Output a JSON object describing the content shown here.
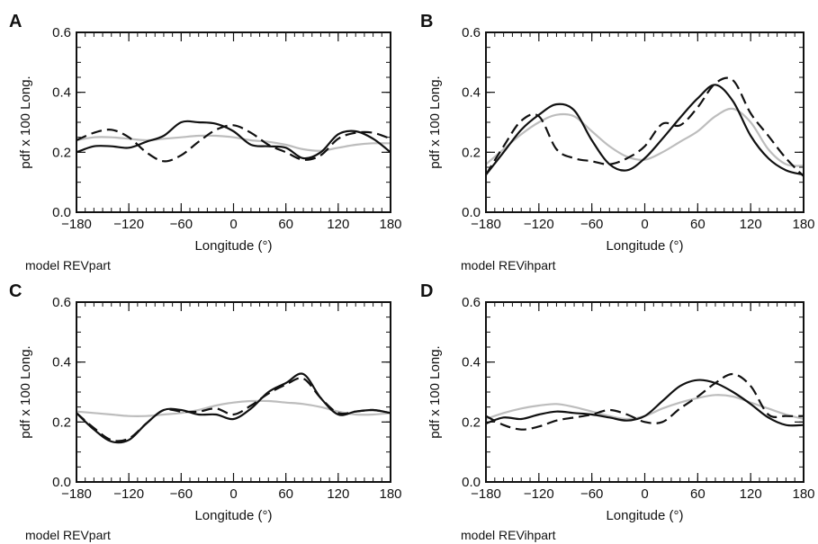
{
  "chart_data": [
    {
      "panel": "A",
      "type": "line",
      "xlabel": "Longitude (°)",
      "ylabel": "pdf x 100 Long.",
      "caption": "model REVpart",
      "xlim": [
        -180,
        180
      ],
      "ylim": [
        0,
        0.6
      ],
      "xticks": [
        -180,
        -120,
        -60,
        0,
        60,
        120,
        180
      ],
      "yticks": [
        0.0,
        0.2,
        0.4,
        0.6
      ],
      "grid": false,
      "series": [
        {
          "style": "gray",
          "color": "#bdbdbd",
          "x": [
            -180,
            -160,
            -140,
            -120,
            -100,
            -80,
            -60,
            -40,
            -20,
            0,
            20,
            40,
            60,
            80,
            100,
            120,
            140,
            160,
            180
          ],
          "y": [
            0.24,
            0.25,
            0.25,
            0.245,
            0.24,
            0.245,
            0.25,
            0.255,
            0.255,
            0.25,
            0.24,
            0.235,
            0.225,
            0.21,
            0.205,
            0.215,
            0.225,
            0.23,
            0.23
          ]
        },
        {
          "style": "dashed",
          "color": "#111111",
          "x": [
            -180,
            -160,
            -140,
            -120,
            -100,
            -80,
            -60,
            -40,
            -20,
            0,
            20,
            40,
            60,
            80,
            100,
            120,
            140,
            160,
            180
          ],
          "y": [
            0.24,
            0.265,
            0.275,
            0.25,
            0.2,
            0.17,
            0.19,
            0.235,
            0.275,
            0.29,
            0.265,
            0.225,
            0.2,
            0.175,
            0.19,
            0.245,
            0.265,
            0.265,
            0.245
          ]
        },
        {
          "style": "solid",
          "color": "#111111",
          "x": [
            -180,
            -160,
            -140,
            -120,
            -100,
            -80,
            -60,
            -40,
            -20,
            0,
            20,
            40,
            60,
            80,
            100,
            120,
            140,
            160,
            180
          ],
          "y": [
            0.2,
            0.22,
            0.22,
            0.215,
            0.235,
            0.255,
            0.3,
            0.3,
            0.295,
            0.27,
            0.225,
            0.22,
            0.215,
            0.18,
            0.2,
            0.26,
            0.27,
            0.245,
            0.2
          ]
        }
      ]
    },
    {
      "panel": "B",
      "type": "line",
      "xlabel": "Longitude (°)",
      "ylabel": "pdf x 100 Long.",
      "caption": "model REVihpart",
      "xlim": [
        -180,
        180
      ],
      "ylim": [
        0,
        0.6
      ],
      "xticks": [
        -180,
        -120,
        -60,
        0,
        60,
        120,
        180
      ],
      "yticks": [
        0.0,
        0.2,
        0.4,
        0.6
      ],
      "grid": false,
      "series": [
        {
          "style": "gray",
          "color": "#bdbdbd",
          "x": [
            -180,
            -160,
            -140,
            -120,
            -100,
            -80,
            -60,
            -40,
            -20,
            0,
            20,
            40,
            60,
            80,
            100,
            120,
            140,
            160,
            180
          ],
          "y": [
            0.16,
            0.21,
            0.26,
            0.3,
            0.325,
            0.32,
            0.27,
            0.22,
            0.185,
            0.175,
            0.2,
            0.235,
            0.27,
            0.32,
            0.345,
            0.3,
            0.21,
            0.16,
            0.155
          ]
        },
        {
          "style": "dashed",
          "color": "#111111",
          "x": [
            -180,
            -160,
            -140,
            -120,
            -100,
            -80,
            -60,
            -40,
            -20,
            0,
            20,
            40,
            60,
            80,
            100,
            120,
            140,
            160,
            180
          ],
          "y": [
            0.125,
            0.22,
            0.305,
            0.32,
            0.21,
            0.18,
            0.17,
            0.16,
            0.18,
            0.22,
            0.295,
            0.29,
            0.35,
            0.43,
            0.44,
            0.33,
            0.255,
            0.18,
            0.12
          ]
        },
        {
          "style": "solid",
          "color": "#111111",
          "x": [
            -180,
            -160,
            -140,
            -120,
            -100,
            -80,
            -60,
            -40,
            -20,
            0,
            20,
            40,
            60,
            80,
            100,
            120,
            140,
            160,
            180
          ],
          "y": [
            0.125,
            0.2,
            0.275,
            0.325,
            0.36,
            0.34,
            0.24,
            0.16,
            0.14,
            0.18,
            0.245,
            0.315,
            0.38,
            0.425,
            0.37,
            0.255,
            0.18,
            0.14,
            0.125
          ]
        }
      ]
    },
    {
      "panel": "C",
      "type": "line",
      "xlabel": "Longitude (°)",
      "ylabel": "pdf x 100 Long.",
      "caption": "model REVpart",
      "xlim": [
        -180,
        180
      ],
      "ylim": [
        0,
        0.6
      ],
      "xticks": [
        -180,
        -120,
        -60,
        0,
        60,
        120,
        180
      ],
      "yticks": [
        0.0,
        0.2,
        0.4,
        0.6
      ],
      "grid": false,
      "series": [
        {
          "style": "gray",
          "color": "#bdbdbd",
          "x": [
            -180,
            -160,
            -140,
            -120,
            -100,
            -80,
            -60,
            -40,
            -20,
            0,
            20,
            40,
            60,
            80,
            100,
            120,
            140,
            160,
            180
          ],
          "y": [
            0.235,
            0.23,
            0.225,
            0.22,
            0.22,
            0.225,
            0.23,
            0.24,
            0.255,
            0.265,
            0.27,
            0.27,
            0.265,
            0.26,
            0.25,
            0.235,
            0.225,
            0.225,
            0.23
          ]
        },
        {
          "style": "dashed",
          "color": "#111111",
          "x": [
            -180,
            -160,
            -140,
            -120,
            -100,
            -80,
            -60,
            -40,
            -20,
            0,
            20,
            40,
            60,
            80,
            100,
            120,
            140,
            160,
            180
          ],
          "y": [
            0.23,
            0.18,
            0.14,
            0.145,
            0.195,
            0.24,
            0.235,
            0.235,
            0.245,
            0.225,
            0.255,
            0.295,
            0.325,
            0.345,
            0.28,
            0.23,
            0.235,
            0.24,
            0.23
          ]
        },
        {
          "style": "solid",
          "color": "#111111",
          "x": [
            -180,
            -160,
            -140,
            -120,
            -100,
            -80,
            -60,
            -40,
            -20,
            0,
            20,
            40,
            60,
            80,
            100,
            120,
            140,
            160,
            180
          ],
          "y": [
            0.23,
            0.175,
            0.135,
            0.14,
            0.195,
            0.24,
            0.24,
            0.225,
            0.225,
            0.21,
            0.245,
            0.3,
            0.33,
            0.36,
            0.28,
            0.225,
            0.235,
            0.24,
            0.23
          ]
        }
      ]
    },
    {
      "panel": "D",
      "type": "line",
      "xlabel": "Longitude (°)",
      "ylabel": "pdf x 100 Long.",
      "caption": "model REVihpart",
      "xlim": [
        -180,
        180
      ],
      "ylim": [
        0,
        0.6
      ],
      "xticks": [
        -180,
        -120,
        -60,
        0,
        60,
        120,
        180
      ],
      "yticks": [
        0.0,
        0.2,
        0.4,
        0.6
      ],
      "grid": false,
      "series": [
        {
          "style": "gray",
          "color": "#bdbdbd",
          "x": [
            -180,
            -160,
            -140,
            -120,
            -100,
            -80,
            -60,
            -40,
            -20,
            0,
            20,
            40,
            60,
            80,
            100,
            120,
            140,
            160,
            180
          ],
          "y": [
            0.21,
            0.23,
            0.245,
            0.255,
            0.26,
            0.25,
            0.235,
            0.22,
            0.21,
            0.22,
            0.245,
            0.265,
            0.28,
            0.29,
            0.285,
            0.265,
            0.245,
            0.225,
            0.21
          ]
        },
        {
          "style": "dashed",
          "color": "#111111",
          "x": [
            -180,
            -160,
            -140,
            -120,
            -100,
            -80,
            -60,
            -40,
            -20,
            0,
            20,
            40,
            60,
            80,
            100,
            120,
            140,
            160,
            180
          ],
          "y": [
            0.22,
            0.19,
            0.175,
            0.185,
            0.205,
            0.215,
            0.225,
            0.24,
            0.225,
            0.2,
            0.2,
            0.245,
            0.285,
            0.33,
            0.36,
            0.32,
            0.225,
            0.22,
            0.22
          ]
        },
        {
          "style": "solid",
          "color": "#111111",
          "x": [
            -180,
            -160,
            -140,
            -120,
            -100,
            -80,
            -60,
            -40,
            -20,
            0,
            20,
            40,
            60,
            80,
            100,
            120,
            140,
            160,
            180
          ],
          "y": [
            0.195,
            0.215,
            0.21,
            0.225,
            0.235,
            0.23,
            0.225,
            0.215,
            0.205,
            0.22,
            0.27,
            0.32,
            0.34,
            0.33,
            0.3,
            0.26,
            0.215,
            0.19,
            0.19
          ]
        }
      ]
    }
  ]
}
